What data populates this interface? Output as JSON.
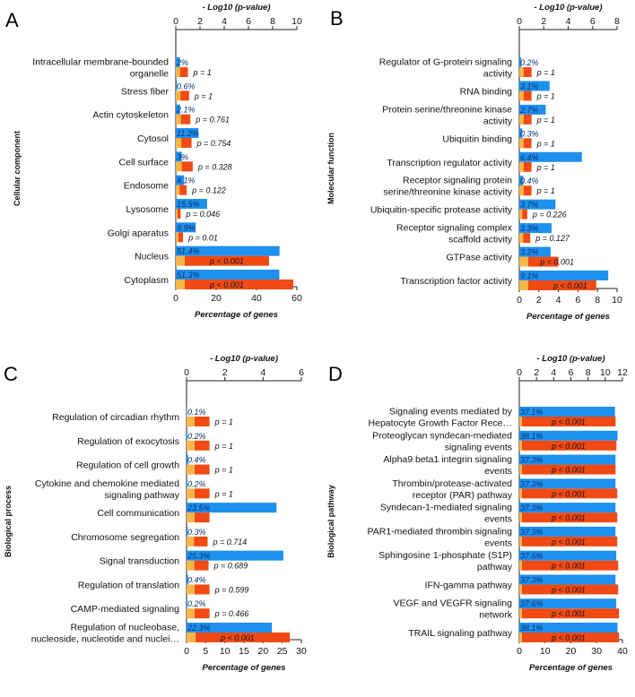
{
  "colors": {
    "blue": "#1e90ee",
    "red": "#f24a14",
    "yellow": "#f7b648",
    "axis": "#222222"
  },
  "chart_data": [
    {
      "letter": "A",
      "type": "bar",
      "ylabel": "Cellular component",
      "title": "- Log10 (p-value)",
      "xlabel": "Percentage of genes",
      "xlim": [
        0,
        60
      ],
      "top_lim": [
        0,
        10
      ],
      "bottom_ticks": [
        "0",
        "20",
        "40",
        "60"
      ],
      "top_ticks": [
        "0",
        "2",
        "4",
        "6",
        "8",
        "10"
      ],
      "categories": [
        {
          "lines": [
            "Intracellular membrane-bounded",
            "organelle"
          ],
          "pct_label": "2%",
          "pct": 2,
          "log": 1,
          "p_label": "p = 1"
        },
        {
          "lines": [
            "Stress fiber"
          ],
          "pct_label": "0.6%",
          "pct": 0.6,
          "log": 1.1,
          "p_label": "p = 1"
        },
        {
          "lines": [
            "Actin cytoskeleton"
          ],
          "pct_label": "2.1%",
          "pct": 2.1,
          "log": 1.2,
          "p_label": "p = 0.761"
        },
        {
          "lines": [
            "Cytosol"
          ],
          "pct_label": "11.2%",
          "pct": 11.2,
          "log": 1.3,
          "p_label": "p = 0.754"
        },
        {
          "lines": [
            "Cell surface"
          ],
          "pct_label": "3%",
          "pct": 3,
          "log": 1.4,
          "p_label": "p = 0.328"
        },
        {
          "lines": [
            "Endosome"
          ],
          "pct_label": "4.1%",
          "pct": 4.1,
          "log": 0.9,
          "p_label": "p = 0.122"
        },
        {
          "lines": [
            "Lysosome"
          ],
          "pct_label": "15.5%",
          "pct": 15.5,
          "log": 0.4,
          "p_label": "p = 0.046"
        },
        {
          "lines": [
            "Golgi aparatus"
          ],
          "pct_label": "9.9%",
          "pct": 9.9,
          "log": 0.6,
          "p_label": "p = 0.01"
        },
        {
          "lines": [
            "Nucleus"
          ],
          "pct_label": "51.4%",
          "pct": 51.4,
          "log": 7.7,
          "p_label": "p < 0.001"
        },
        {
          "lines": [
            "Cytoplasm"
          ],
          "pct_label": "51.3%",
          "pct": 51.3,
          "log": 9.7,
          "p_label": "p < 0.001"
        }
      ]
    },
    {
      "letter": "B",
      "type": "bar",
      "ylabel": "Molecular function",
      "title": "- Log10 (p-value)",
      "xlabel": "Percentage of genes",
      "xlim": [
        0,
        10
      ],
      "top_lim": [
        0,
        8
      ],
      "bottom_ticks": [
        "0",
        "2",
        "4",
        "6",
        "8",
        "10"
      ],
      "top_ticks": [
        "0",
        "2",
        "4",
        "6",
        "8"
      ],
      "categories": [
        {
          "lines": [
            "Regulator of G-protein signaling",
            "activity"
          ],
          "pct_label": "0.2%",
          "pct": 0.2,
          "log": 1,
          "p_label": "p = 1"
        },
        {
          "lines": [
            "RNA binding"
          ],
          "pct_label": "3.1%",
          "pct": 3.1,
          "log": 1,
          "p_label": "p = 1"
        },
        {
          "lines": [
            "Protein serine/threonine kinase",
            "activity"
          ],
          "pct_label": "2.7%",
          "pct": 2.7,
          "log": 1,
          "p_label": "p = 1"
        },
        {
          "lines": [
            "Ubiquitin binding"
          ],
          "pct_label": "0.3%",
          "pct": 0.3,
          "log": 1,
          "p_label": "p = 1"
        },
        {
          "lines": [
            "Transcription regulator activity"
          ],
          "pct_label": "6.4%",
          "pct": 6.4,
          "log": 1,
          "p_label": "p = 1"
        },
        {
          "lines": [
            "Receptor signaling protein",
            "serine/threonine kinase activity"
          ],
          "pct_label": "0.4%",
          "pct": 0.4,
          "log": 1,
          "p_label": "p = 1"
        },
        {
          "lines": [
            "Ubiquitin-specific protease activity"
          ],
          "pct_label": "3.7%",
          "pct": 3.7,
          "log": 0.65,
          "p_label": "p = 0.226"
        },
        {
          "lines": [
            "Receptor signaling complex",
            "scaffold activity"
          ],
          "pct_label": "3.3%",
          "pct": 3.3,
          "log": 0.9,
          "p_label": "p = 0.127"
        },
        {
          "lines": [
            "GTPase activity"
          ],
          "pct_label": "3.2%",
          "pct": 3.2,
          "log": 3.2,
          "p_label": "p < 0.001"
        },
        {
          "lines": [
            "Transcription factor activity"
          ],
          "pct_label": "9.1%",
          "pct": 9.1,
          "log": 6.3,
          "p_label": "p < 0.001"
        }
      ]
    },
    {
      "letter": "C",
      "type": "bar",
      "ylabel": "Biological process",
      "title": "- Log10 (p-value)",
      "xlabel": "Percentage of genes",
      "xlim": [
        0,
        30
      ],
      "top_lim": [
        0,
        6
      ],
      "bottom_ticks": [
        "0",
        "5",
        "10",
        "15",
        "20",
        "25",
        "30"
      ],
      "top_ticks": [
        "0",
        "2",
        "4",
        "6"
      ],
      "categories": [
        {
          "lines": [
            "Regulation of circadian rhythm"
          ],
          "pct_label": "0.1%",
          "pct": 0.1,
          "log": 1.2,
          "p_label": "p = 1"
        },
        {
          "lines": [
            "Regulation of exocytosis"
          ],
          "pct_label": "0.2%",
          "pct": 0.2,
          "log": 1.2,
          "p_label": "p = 1"
        },
        {
          "lines": [
            "Regulation of cell growth"
          ],
          "pct_label": "0.4%",
          "pct": 0.4,
          "log": 1.2,
          "p_label": "p = 1"
        },
        {
          "lines": [
            "Cytokine and chemokine mediated",
            "signaling pathway"
          ],
          "pct_label": "0.2%",
          "pct": 0.2,
          "log": 1.2,
          "p_label": "p = 1"
        },
        {
          "lines": [
            "Cell communication"
          ],
          "pct_label": "23.5%",
          "pct": 23.5,
          "log": 1.2,
          "p_label": ""
        },
        {
          "lines": [
            "Chromosome segregation"
          ],
          "pct_label": "0.3%",
          "pct": 0.3,
          "log": 1.1,
          "p_label": "p = 0.714"
        },
        {
          "lines": [
            "Signal transduction"
          ],
          "pct_label": "25.3%",
          "pct": 25.3,
          "log": 1.15,
          "p_label": "p = 0.689"
        },
        {
          "lines": [
            "Regulation of translation"
          ],
          "pct_label": "0.4%",
          "pct": 0.4,
          "log": 1.2,
          "p_label": "p = 0.599"
        },
        {
          "lines": [
            "CAMP-mediated signaling"
          ],
          "pct_label": "0.2%",
          "pct": 0.2,
          "log": 1.2,
          "p_label": "p = 0.466"
        },
        {
          "lines": [
            "Regulation of nucleobase,",
            "nucleoside, nucleotide and nuclei…"
          ],
          "pct_label": "22.3%",
          "pct": 22.3,
          "log": 5.4,
          "p_label": "p < 0.001"
        }
      ]
    },
    {
      "letter": "D",
      "type": "bar",
      "ylabel": "Biological pathway",
      "title": "- Log10 (p-value)",
      "xlabel": "Percentage of genes",
      "xlim": [
        0,
        40
      ],
      "top_lim": [
        0,
        12
      ],
      "bottom_ticks": [
        "0",
        "10",
        "20",
        "30",
        "40"
      ],
      "top_ticks": [
        "0",
        "2",
        "4",
        "6",
        "8",
        "10",
        "12"
      ],
      "categories": [
        {
          "lines": [
            "Signaling events mediated by",
            "Hepatocyte Growth Factor Rece…"
          ],
          "pct_label": "37.1%",
          "pct": 37.1,
          "log": 11.2,
          "p_label": "p < 0.001"
        },
        {
          "lines": [
            "Proteoglycan syndecan-mediated",
            "signaling events"
          ],
          "pct_label": "38.1%",
          "pct": 38.1,
          "log": 11.3,
          "p_label": "p < 0.001"
        },
        {
          "lines": [
            "Alpha9 beta1 integrin signaling",
            "events"
          ],
          "pct_label": "37.3%",
          "pct": 37.3,
          "log": 11.2,
          "p_label": "p < 0.001"
        },
        {
          "lines": [
            "Thrombin/protease-activated",
            "receptor (PAR) pathway"
          ],
          "pct_label": "37.3%",
          "pct": 37.3,
          "log": 11.4,
          "p_label": "p < 0.001"
        },
        {
          "lines": [
            "Syndecan-1-mediated signaling",
            "events"
          ],
          "pct_label": "37.3%",
          "pct": 37.3,
          "log": 11.4,
          "p_label": "p < 0.001"
        },
        {
          "lines": [
            "PAR1-mediated thrombin signaling",
            "events"
          ],
          "pct_label": "37.3%",
          "pct": 37.3,
          "log": 11.4,
          "p_label": "p < 0.001"
        },
        {
          "lines": [
            "Sphingosine 1-phosphate (S1P)",
            "pathway"
          ],
          "pct_label": "37.6%",
          "pct": 37.6,
          "log": 11.5,
          "p_label": "p < 0.001"
        },
        {
          "lines": [
            "IFN-gamma pathway"
          ],
          "pct_label": "37.3%",
          "pct": 37.3,
          "log": 11.5,
          "p_label": "p < 0.001"
        },
        {
          "lines": [
            "VEGF and VEGFR signaling",
            "network"
          ],
          "pct_label": "37.6%",
          "pct": 37.6,
          "log": 11.6,
          "p_label": "p < 0.001"
        },
        {
          "lines": [
            "TRAIL signaling pathway"
          ],
          "pct_label": "38.1%",
          "pct": 38.1,
          "log": 11.6,
          "p_label": "p < 0.001"
        }
      ]
    }
  ]
}
